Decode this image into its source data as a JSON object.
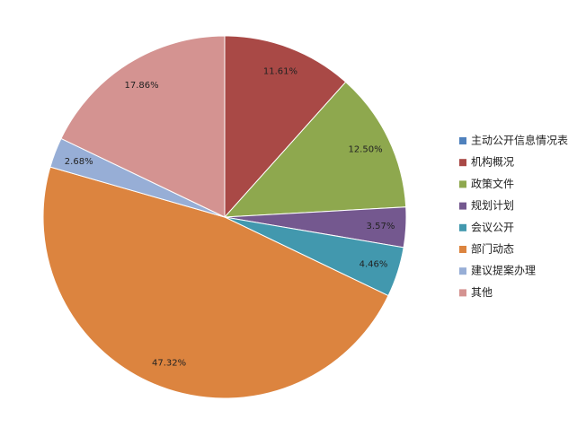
{
  "chart_data": {
    "type": "pie",
    "categories": [
      "主动公开信息情况表",
      "机构概况",
      "政策文件",
      "规划计划",
      "会议公开",
      "部门动态",
      "建议提案办理",
      "其他"
    ],
    "values": [
      0,
      11.61,
      12.5,
      3.57,
      4.46,
      47.32,
      2.68,
      17.86
    ],
    "value_labels": [
      null,
      "11.61%",
      "12.50%",
      "3.57%",
      "4.46%",
      "47.32%",
      "2.68%",
      "17.86%"
    ],
    "colors": [
      "#4f81bd",
      "#a94946",
      "#8ea84e",
      "#74588f",
      "#4298ae",
      "#dc843f",
      "#97aed6",
      "#d49391"
    ],
    "legend": "right"
  }
}
